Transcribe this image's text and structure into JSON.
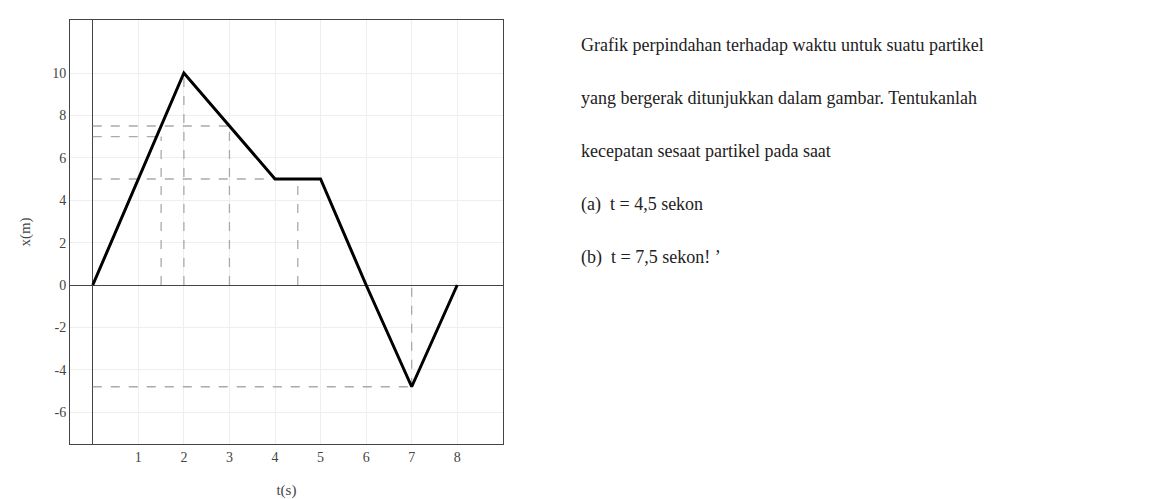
{
  "chart_data": {
    "type": "line",
    "x_label": "t(s)",
    "y_label": "x(m)",
    "xlim": [
      -0.5,
      9.0
    ],
    "ylim": [
      -7.5,
      12.5
    ],
    "xticks": [
      1,
      2,
      3,
      4,
      5,
      6,
      7,
      8
    ],
    "yticks": [
      -6,
      -4,
      -2,
      0,
      2,
      4,
      6,
      8,
      10
    ],
    "series": [
      {
        "x": [
          0,
          2,
          3,
          4,
          5,
          6,
          7,
          8
        ],
        "values": [
          0,
          10,
          7.5,
          5,
          5,
          0,
          -4.8,
          0
        ],
        "color": "black",
        "line_style": "solid"
      },
      {
        "x": [
          1.5,
          1.5
        ],
        "values": [
          0,
          7
        ],
        "color": "#aaaaaa",
        "line_style": "dashed"
      },
      {
        "x": [
          2,
          2
        ],
        "values": [
          0,
          10
        ],
        "color": "#aaaaaa",
        "line_style": "dashed"
      },
      {
        "x": [
          3,
          3
        ],
        "values": [
          0,
          7.5
        ],
        "color": "#aaaaaa",
        "line_style": "dashed"
      },
      {
        "x": [
          4.5,
          4.5
        ],
        "values": [
          0,
          5
        ],
        "color": "#aaaaaa",
        "line_style": "dashed"
      },
      {
        "x": [
          7,
          7
        ],
        "values": [
          -4.8,
          0
        ],
        "color": "#aaaaaa",
        "line_style": "dashed"
      },
      {
        "x": [
          0,
          1.5
        ],
        "values": [
          7,
          7
        ],
        "color": "#aaaaaa",
        "line_style": "dashed"
      },
      {
        "x": [
          0,
          3
        ],
        "values": [
          7.5,
          7.5
        ],
        "color": "#aaaaaa",
        "line_style": "dashed"
      },
      {
        "x": [
          0,
          4.5
        ],
        "values": [
          5,
          5
        ],
        "color": "#aaaaaa",
        "line_style": "dashed"
      },
      {
        "x": [
          0,
          7
        ],
        "values": [
          -4.8,
          -4.8
        ],
        "color": "#aaaaaa",
        "line_style": "dashed"
      }
    ],
    "annotations": [
      "Grafik perpindahan terhadap waktu untuk suatu partikel",
      "yang bergerak ditunjukkan dalam gambar. Tentukanlah",
      "kecepatan sesaat partikel pada saat",
      "(a)  t = 4,5 sekon",
      "(b)  t = 7,5 sekon! ’"
    ]
  }
}
